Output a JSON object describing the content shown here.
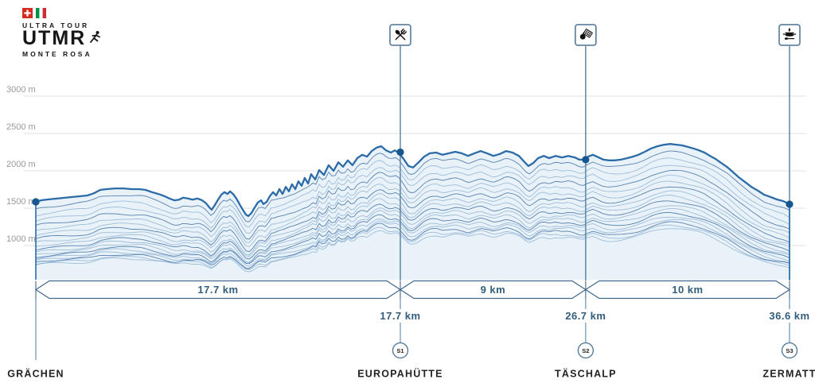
{
  "logo": {
    "country_flags": [
      "switzerland",
      "italy"
    ],
    "tagline_top": "ULTRA TOUR",
    "acronym": "UTMR",
    "tagline_bottom": "MONTE ROSA"
  },
  "chart_data": {
    "type": "area",
    "style": "ridgeline-elevation-profile",
    "grid": "horizontal",
    "y_axis": {
      "unit": "m",
      "ticks": [
        {
          "label": "3000 m",
          "value": 3000
        },
        {
          "label": "2500 m",
          "value": 2500
        },
        {
          "label": "2000 m",
          "value": 2000
        },
        {
          "label": "1500 m",
          "value": 1500
        },
        {
          "label": "1000 m",
          "value": 1000
        }
      ]
    },
    "x_axis": {
      "unit": "km",
      "min": 0,
      "max": 36.6
    },
    "profile_km_elevation": [
      [
        0,
        1585
      ],
      [
        0.27,
        1606
      ],
      [
        0.58,
        1617
      ],
      [
        0.97,
        1628
      ],
      [
        1.35,
        1638
      ],
      [
        1.74,
        1649
      ],
      [
        2.13,
        1660
      ],
      [
        2.51,
        1670
      ],
      [
        2.82,
        1700
      ],
      [
        3.13,
        1745
      ],
      [
        3.44,
        1755
      ],
      [
        3.86,
        1765
      ],
      [
        4.25,
        1765
      ],
      [
        4.64,
        1755
      ],
      [
        5.02,
        1755
      ],
      [
        5.33,
        1745
      ],
      [
        5.64,
        1715
      ],
      [
        5.95,
        1690
      ],
      [
        6.26,
        1660
      ],
      [
        6.49,
        1630
      ],
      [
        6.73,
        1605
      ],
      [
        6.96,
        1615
      ],
      [
        7.15,
        1640
      ],
      [
        7.38,
        1630
      ],
      [
        7.61,
        1615
      ],
      [
        7.85,
        1630
      ],
      [
        8.08,
        1605
      ],
      [
        8.27,
        1565
      ],
      [
        8.43,
        1510
      ],
      [
        8.54,
        1480
      ],
      [
        8.7,
        1545
      ],
      [
        8.85,
        1615
      ],
      [
        9.0,
        1680
      ],
      [
        9.16,
        1715
      ],
      [
        9.31,
        1690
      ],
      [
        9.43,
        1725
      ],
      [
        9.58,
        1690
      ],
      [
        9.74,
        1630
      ],
      [
        9.89,
        1555
      ],
      [
        10.05,
        1480
      ],
      [
        10.2,
        1415
      ],
      [
        10.32,
        1395
      ],
      [
        10.47,
        1435
      ],
      [
        10.63,
        1510
      ],
      [
        10.78,
        1575
      ],
      [
        10.94,
        1605
      ],
      [
        11.05,
        1555
      ],
      [
        11.21,
        1585
      ],
      [
        11.36,
        1660
      ],
      [
        11.52,
        1715
      ],
      [
        11.67,
        1670
      ],
      [
        11.83,
        1755
      ],
      [
        11.98,
        1690
      ],
      [
        12.14,
        1785
      ],
      [
        12.29,
        1725
      ],
      [
        12.44,
        1820
      ],
      [
        12.6,
        1755
      ],
      [
        12.75,
        1860
      ],
      [
        12.91,
        1800
      ],
      [
        13.06,
        1905
      ],
      [
        13.22,
        1830
      ],
      [
        13.37,
        1955
      ],
      [
        13.57,
        1885
      ],
      [
        13.76,
        2010
      ],
      [
        13.99,
        1945
      ],
      [
        14.22,
        2075
      ],
      [
        14.46,
        2000
      ],
      [
        14.69,
        2115
      ],
      [
        14.92,
        2055
      ],
      [
        15.15,
        2140
      ],
      [
        15.38,
        2075
      ],
      [
        15.61,
        2170
      ],
      [
        15.85,
        2215
      ],
      [
        16.08,
        2190
      ],
      [
        16.31,
        2265
      ],
      [
        16.54,
        2310
      ],
      [
        16.77,
        2330
      ],
      [
        17.01,
        2275
      ],
      [
        17.24,
        2245
      ],
      [
        17.43,
        2275
      ],
      [
        17.62,
        2245
      ],
      [
        17.86,
        2160
      ],
      [
        18.09,
        2065
      ],
      [
        18.32,
        2045
      ],
      [
        18.59,
        2115
      ],
      [
        18.86,
        2190
      ],
      [
        19.13,
        2235
      ],
      [
        19.44,
        2245
      ],
      [
        19.75,
        2215
      ],
      [
        20.06,
        2235
      ],
      [
        20.37,
        2255
      ],
      [
        20.68,
        2235
      ],
      [
        20.99,
        2200
      ],
      [
        21.3,
        2235
      ],
      [
        21.6,
        2265
      ],
      [
        21.91,
        2235
      ],
      [
        22.22,
        2200
      ],
      [
        22.53,
        2225
      ],
      [
        22.84,
        2265
      ],
      [
        23.15,
        2245
      ],
      [
        23.46,
        2200
      ],
      [
        23.69,
        2130
      ],
      [
        23.92,
        2065
      ],
      [
        24.16,
        2105
      ],
      [
        24.39,
        2170
      ],
      [
        24.66,
        2200
      ],
      [
        24.93,
        2170
      ],
      [
        25.24,
        2200
      ],
      [
        25.55,
        2180
      ],
      [
        25.86,
        2200
      ],
      [
        26.17,
        2180
      ],
      [
        26.4,
        2150
      ],
      [
        26.59,
        2150
      ],
      [
        26.82,
        2190
      ],
      [
        27.05,
        2215
      ],
      [
        27.33,
        2180
      ],
      [
        27.56,
        2150
      ],
      [
        27.83,
        2140
      ],
      [
        28.1,
        2140
      ],
      [
        28.41,
        2150
      ],
      [
        28.72,
        2170
      ],
      [
        28.99,
        2190
      ],
      [
        29.26,
        2215
      ],
      [
        29.57,
        2255
      ],
      [
        29.88,
        2300
      ],
      [
        30.19,
        2330
      ],
      [
        30.5,
        2350
      ],
      [
        30.81,
        2360
      ],
      [
        31.12,
        2350
      ],
      [
        31.39,
        2340
      ],
      [
        31.66,
        2320
      ],
      [
        31.93,
        2300
      ],
      [
        32.2,
        2275
      ],
      [
        32.47,
        2245
      ],
      [
        32.74,
        2200
      ],
      [
        33.01,
        2160
      ],
      [
        33.28,
        2105
      ],
      [
        33.55,
        2055
      ],
      [
        33.82,
        1990
      ],
      [
        34.13,
        1915
      ],
      [
        34.44,
        1850
      ],
      [
        34.75,
        1785
      ],
      [
        35.06,
        1735
      ],
      [
        35.37,
        1680
      ],
      [
        35.68,
        1650
      ],
      [
        35.99,
        1617
      ],
      [
        36.3,
        1595
      ],
      [
        36.6,
        1553
      ]
    ],
    "checkpoints": [
      {
        "place": "GRÄCHEN",
        "km": 0,
        "elevation_m": 1585,
        "distance_label": "",
        "station": "",
        "icon": ""
      },
      {
        "place": "EUROPAHÜTTE",
        "km": 17.7,
        "elevation_m": 2250,
        "distance_label": "17.7 km",
        "station": "S1",
        "icon": "crossed-cutlery"
      },
      {
        "place": "TÄSCHALP",
        "km": 26.7,
        "elevation_m": 2150,
        "distance_label": "26.7 km",
        "station": "S2",
        "icon": "apple-snack"
      },
      {
        "place": "ZERMATT",
        "km": 36.6,
        "elevation_m": 1553,
        "distance_label": "36.6 km",
        "station": "S3",
        "icon": "hot-meal"
      }
    ],
    "segments": [
      {
        "label": "17.7 km",
        "from_km": 0,
        "to_km": 17.7
      },
      {
        "label": "9 km",
        "from_km": 17.7,
        "to_km": 26.7
      },
      {
        "label": "10 km",
        "from_km": 26.7,
        "to_km": 36.6
      }
    ]
  },
  "colors": {
    "profile_line": "#2b6ba8",
    "profile_fill": "#e9f1f9",
    "echo_line_dark": "#3d6fa3",
    "echo_line_light": "#6d9cc4",
    "dot": "#17568f",
    "grid_line": "#e2e2e2",
    "axis_label": "#9a9a9a",
    "bar_outline": "#41688c",
    "bar_text": "#335d7d",
    "marker_line": "#7ba3c1",
    "checkpoint_line": "#5d87a6",
    "place_label": "#222222",
    "icon_box_border": "#4a7090",
    "swiss_red": "#d52b1e",
    "italy_green": "#009246",
    "italy_red": "#ce2b37"
  }
}
